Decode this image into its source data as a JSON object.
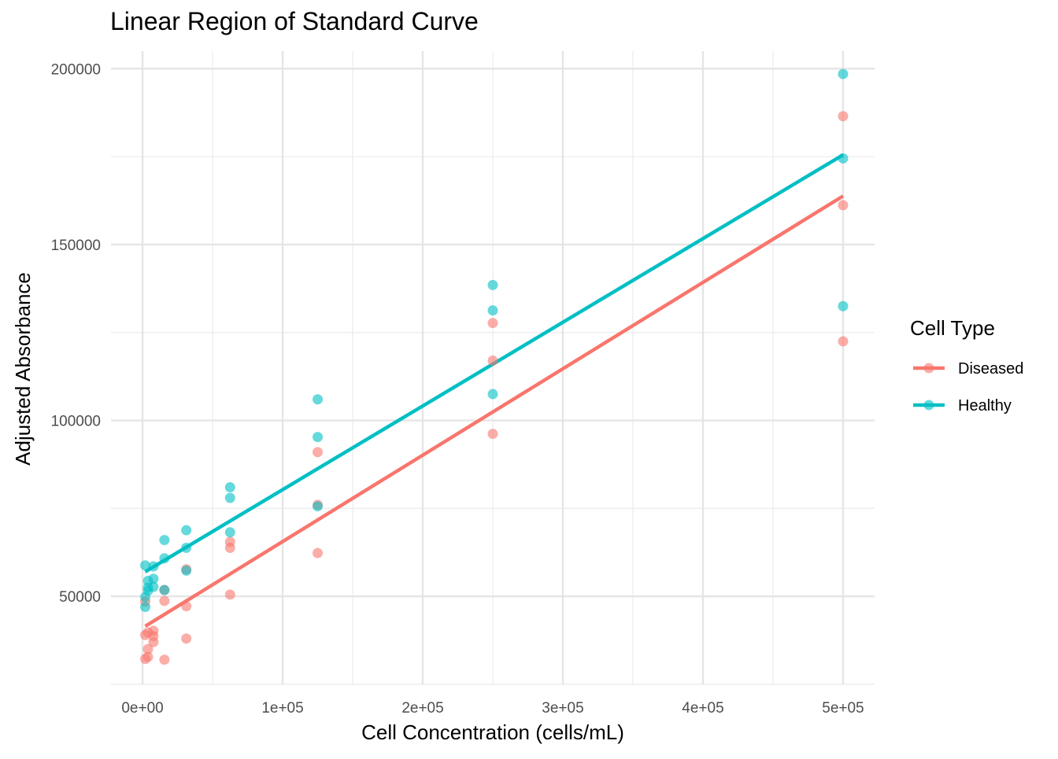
{
  "chart_data": {
    "type": "scatter",
    "title": "Linear Region of Standard Curve",
    "xlabel": "Cell Concentration (cells/mL)",
    "ylabel": "Adjusted Absorbance",
    "xlim": [
      -22500,
      522500
    ],
    "ylim": [
      25000,
      205000
    ],
    "x_ticks": [
      0,
      100000,
      200000,
      300000,
      400000,
      500000
    ],
    "x_tick_labels": [
      "0e+00",
      "1e+05",
      "2e+05",
      "3e+05",
      "4e+05",
      "5e+05"
    ],
    "x_minor_ticks": [
      50000,
      150000,
      250000,
      350000,
      450000
    ],
    "y_ticks": [
      50000,
      100000,
      150000,
      200000
    ],
    "y_tick_labels": [
      "50000",
      "100000",
      "150000",
      "200000"
    ],
    "y_minor_ticks": [
      25000,
      75000,
      125000,
      175000
    ],
    "grid": true,
    "legend": {
      "title": "Cell Type",
      "position": "right"
    },
    "series": [
      {
        "name": "Diseased",
        "color": "#F8766D",
        "points": [
          [
            1953,
            32200
          ],
          [
            1953,
            39000
          ],
          [
            1953,
            48500
          ],
          [
            3906,
            32800
          ],
          [
            3906,
            35000
          ],
          [
            3906,
            39700
          ],
          [
            7813,
            37000
          ],
          [
            7813,
            38700
          ],
          [
            7813,
            40200
          ],
          [
            15625,
            32000
          ],
          [
            15625,
            48700
          ],
          [
            15625,
            51800
          ],
          [
            31250,
            38000
          ],
          [
            31250,
            47200
          ],
          [
            31250,
            57700
          ],
          [
            62500,
            50500
          ],
          [
            62500,
            63800
          ],
          [
            62500,
            65500
          ],
          [
            125000,
            62300
          ],
          [
            125000,
            76000
          ],
          [
            125000,
            91000
          ],
          [
            250000,
            96200
          ],
          [
            250000,
            117000
          ],
          [
            250000,
            127700
          ],
          [
            500000,
            122500
          ],
          [
            500000,
            161200
          ],
          [
            500000,
            186500
          ]
        ],
        "fit": [
          [
            1953,
            41500
          ],
          [
            500000,
            163800
          ]
        ]
      },
      {
        "name": "Healthy",
        "color": "#00BFC4",
        "points": [
          [
            1953,
            47000
          ],
          [
            1953,
            49800
          ],
          [
            1953,
            58800
          ],
          [
            3906,
            51600
          ],
          [
            3906,
            52500
          ],
          [
            3906,
            54400
          ],
          [
            7813,
            52700
          ],
          [
            7813,
            55000
          ],
          [
            7813,
            58500
          ],
          [
            15625,
            51800
          ],
          [
            15625,
            60800
          ],
          [
            15625,
            66000
          ],
          [
            31250,
            57300
          ],
          [
            31250,
            63800
          ],
          [
            31250,
            68800
          ],
          [
            62500,
            68200
          ],
          [
            62500,
            78000
          ],
          [
            62500,
            81000
          ],
          [
            125000,
            75600
          ],
          [
            125000,
            95300
          ],
          [
            125000,
            106000
          ],
          [
            250000,
            107500
          ],
          [
            250000,
            131300
          ],
          [
            250000,
            138500
          ],
          [
            500000,
            132500
          ],
          [
            500000,
            174500
          ],
          [
            500000,
            198500
          ]
        ],
        "fit": [
          [
            1953,
            57000
          ],
          [
            500000,
            175500
          ]
        ]
      }
    ]
  }
}
